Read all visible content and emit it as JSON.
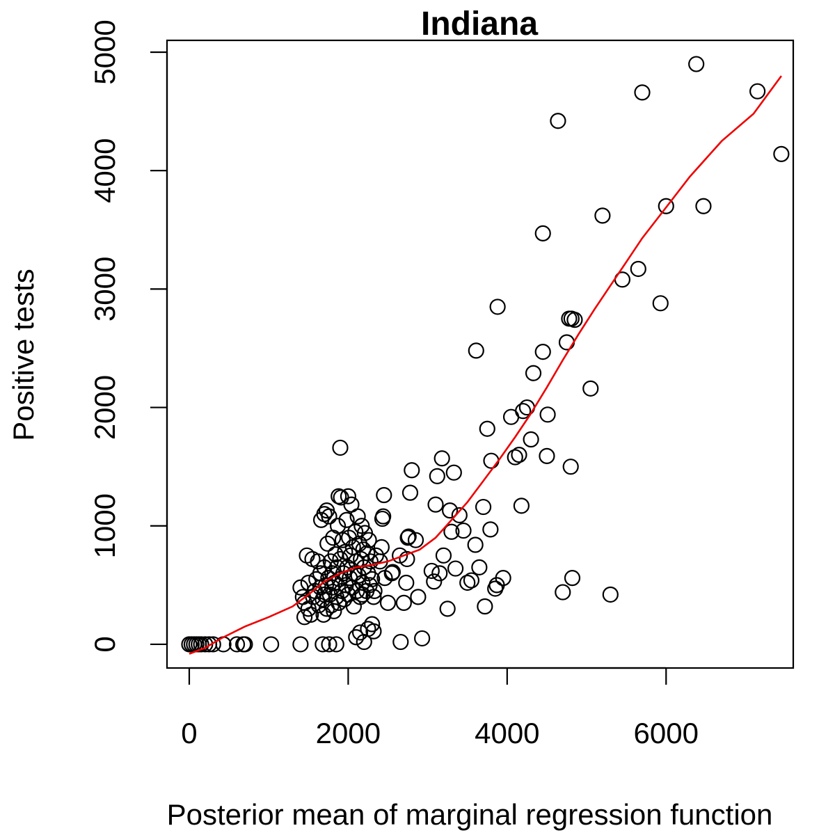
{
  "chart_data": {
    "type": "scatter",
    "title": "Indiana",
    "xlabel": "Posterior mean of marginal regression function",
    "ylabel": "Positive tests",
    "xlim": [
      -280,
      7600
    ],
    "ylim": [
      -200,
      5100
    ],
    "x_ticks": [
      0,
      2000,
      4000,
      6000
    ],
    "y_ticks": [
      0,
      1000,
      2000,
      3000,
      4000,
      5000
    ],
    "x_tick_labels": [
      "0",
      "2000",
      "4000",
      "6000"
    ],
    "y_tick_labels": [
      "0",
      "1000",
      "2000",
      "3000",
      "4000",
      "5000"
    ],
    "grid": false,
    "legend": "none",
    "colors": {
      "points": "#000000",
      "smoother": "#ee0000"
    },
    "points": [
      [
        0,
        0
      ],
      [
        30,
        0
      ],
      [
        60,
        0
      ],
      [
        90,
        0
      ],
      [
        120,
        0
      ],
      [
        150,
        0
      ],
      [
        200,
        0
      ],
      [
        250,
        0
      ],
      [
        300,
        0
      ],
      [
        430,
        0
      ],
      [
        600,
        0
      ],
      [
        680,
        0
      ],
      [
        700,
        0
      ],
      [
        1030,
        0
      ],
      [
        1400,
        0
      ],
      [
        1680,
        0
      ],
      [
        1760,
        0
      ],
      [
        1850,
        0
      ],
      [
        1400,
        480
      ],
      [
        1430,
        400
      ],
      [
        1450,
        350
      ],
      [
        1450,
        230
      ],
      [
        1500,
        300
      ],
      [
        1500,
        520
      ],
      [
        1530,
        250
      ],
      [
        1560,
        400
      ],
      [
        1580,
        450
      ],
      [
        1600,
        550
      ],
      [
        1620,
        700
      ],
      [
        1630,
        330
      ],
      [
        1650,
        480
      ],
      [
        1650,
        600
      ],
      [
        1680,
        380
      ],
      [
        1690,
        250
      ],
      [
        1700,
        420
      ],
      [
        1700,
        650
      ],
      [
        1720,
        500
      ],
      [
        1730,
        300
      ],
      [
        1740,
        850
      ],
      [
        1750,
        560
      ],
      [
        1760,
        1080
      ],
      [
        1770,
        420
      ],
      [
        1780,
        700
      ],
      [
        1790,
        330
      ],
      [
        1800,
        480
      ],
      [
        1800,
        600
      ],
      [
        1810,
        900
      ],
      [
        1820,
        280
      ],
      [
        1830,
        520
      ],
      [
        1840,
        760
      ],
      [
        1850,
        400
      ],
      [
        1860,
        650
      ],
      [
        1870,
        1000
      ],
      [
        1880,
        350
      ],
      [
        1890,
        550
      ],
      [
        1900,
        720
      ],
      [
        1910,
        1240
      ],
      [
        1920,
        450
      ],
      [
        1930,
        880
      ],
      [
        1940,
        600
      ],
      [
        1950,
        380
      ],
      [
        1960,
        780
      ],
      [
        1970,
        500
      ],
      [
        1980,
        1050
      ],
      [
        1990,
        650
      ],
      [
        2000,
        420
      ],
      [
        2010,
        900
      ],
      [
        2020,
        560
      ],
      [
        2030,
        750
      ],
      [
        2040,
        1180
      ],
      [
        2050,
        480
      ],
      [
        2060,
        820
      ],
      [
        2070,
        320
      ],
      [
        2080,
        600
      ],
      [
        2090,
        950
      ],
      [
        2100,
        700
      ],
      [
        2110,
        450
      ],
      [
        2120,
        1080
      ],
      [
        2130,
        580
      ],
      [
        2140,
        850
      ],
      [
        2150,
        400
      ],
      [
        2160,
        720
      ],
      [
        2170,
        1000
      ],
      [
        2180,
        520
      ],
      [
        2190,
        800
      ],
      [
        2200,
        650
      ],
      [
        2210,
        940
      ],
      [
        2230,
        450
      ],
      [
        2240,
        770
      ],
      [
        2250,
        600
      ],
      [
        2260,
        880
      ],
      [
        2270,
        500
      ],
      [
        2280,
        700
      ],
      [
        2300,
        550
      ],
      [
        2320,
        400
      ],
      [
        2330,
        450
      ],
      [
        2350,
        750
      ],
      [
        2400,
        700
      ],
      [
        2420,
        820
      ],
      [
        2430,
        1060
      ],
      [
        2440,
        1080
      ],
      [
        2450,
        1260
      ],
      [
        2460,
        560
      ],
      [
        2500,
        350
      ],
      [
        2550,
        600
      ],
      [
        2560,
        610
      ],
      [
        2650,
        750
      ],
      [
        2700,
        350
      ],
      [
        2730,
        520
      ],
      [
        2740,
        720
      ],
      [
        2750,
        900
      ],
      [
        2760,
        910
      ],
      [
        2780,
        1280
      ],
      [
        2800,
        1470
      ],
      [
        2850,
        880
      ],
      [
        2880,
        400
      ],
      [
        1660,
        1050
      ],
      [
        1700,
        1100
      ],
      [
        1730,
        1130
      ],
      [
        1880,
        1250
      ],
      [
        1900,
        1660
      ],
      [
        2000,
        1250
      ],
      [
        2180,
        420
      ],
      [
        2100,
        60
      ],
      [
        2150,
        100
      ],
      [
        2200,
        20
      ],
      [
        2250,
        130
      ],
      [
        2300,
        170
      ],
      [
        2320,
        110
      ],
      [
        2660,
        20
      ],
      [
        2930,
        50
      ],
      [
        1480,
        750
      ],
      [
        1550,
        720
      ],
      [
        3050,
        620
      ],
      [
        3080,
        530
      ],
      [
        3100,
        1180
      ],
      [
        3120,
        1420
      ],
      [
        3150,
        600
      ],
      [
        3180,
        1570
      ],
      [
        3200,
        750
      ],
      [
        3250,
        300
      ],
      [
        3280,
        1130
      ],
      [
        3300,
        950
      ],
      [
        3330,
        1450
      ],
      [
        3350,
        640
      ],
      [
        3400,
        1090
      ],
      [
        3450,
        960
      ],
      [
        3500,
        520
      ],
      [
        3550,
        540
      ],
      [
        3600,
        840
      ],
      [
        3610,
        2480
      ],
      [
        3650,
        650
      ],
      [
        3700,
        1160
      ],
      [
        3720,
        320
      ],
      [
        3750,
        1820
      ],
      [
        3790,
        970
      ],
      [
        3800,
        1550
      ],
      [
        3850,
        470
      ],
      [
        3870,
        500
      ],
      [
        3880,
        2850
      ],
      [
        3950,
        560
      ],
      [
        4050,
        1920
      ],
      [
        4100,
        1580
      ],
      [
        4150,
        1600
      ],
      [
        4180,
        1170
      ],
      [
        4200,
        1970
      ],
      [
        4250,
        2000
      ],
      [
        4300,
        1730
      ],
      [
        4330,
        2290
      ],
      [
        4450,
        2470
      ],
      [
        4500,
        1590
      ],
      [
        4510,
        1940
      ],
      [
        4640,
        4420
      ],
      [
        4700,
        440
      ],
      [
        4750,
        2550
      ],
      [
        4780,
        2750
      ],
      [
        4800,
        1500
      ],
      [
        4810,
        2750
      ],
      [
        4820,
        560
      ],
      [
        4850,
        2740
      ],
      [
        5050,
        2160
      ],
      [
        5200,
        3620
      ],
      [
        5300,
        420
      ],
      [
        5450,
        3080
      ],
      [
        5650,
        3170
      ],
      [
        5700,
        4660
      ],
      [
        5930,
        2880
      ],
      [
        6000,
        3700
      ],
      [
        6380,
        4900
      ],
      [
        6470,
        3700
      ],
      [
        7150,
        4670
      ],
      [
        7450,
        4140
      ],
      [
        4450,
        3470
      ]
    ],
    "smoother": [
      [
        0,
        -80
      ],
      [
        200,
        -30
      ],
      [
        400,
        50
      ],
      [
        700,
        150
      ],
      [
        1000,
        230
      ],
      [
        1300,
        320
      ],
      [
        1500,
        420
      ],
      [
        1700,
        530
      ],
      [
        1900,
        600
      ],
      [
        2100,
        650
      ],
      [
        2300,
        670
      ],
      [
        2500,
        700
      ],
      [
        2700,
        750
      ],
      [
        2900,
        800
      ],
      [
        3100,
        900
      ],
      [
        3300,
        1050
      ],
      [
        3500,
        1200
      ],
      [
        3700,
        1380
      ],
      [
        3900,
        1560
      ],
      [
        4100,
        1750
      ],
      [
        4300,
        1950
      ],
      [
        4500,
        2170
      ],
      [
        4700,
        2400
      ],
      [
        4900,
        2620
      ],
      [
        5100,
        2830
      ],
      [
        5300,
        3030
      ],
      [
        5500,
        3230
      ],
      [
        5700,
        3430
      ],
      [
        6000,
        3690
      ],
      [
        6300,
        3950
      ],
      [
        6700,
        4250
      ],
      [
        7100,
        4480
      ],
      [
        7450,
        4800
      ]
    ]
  }
}
